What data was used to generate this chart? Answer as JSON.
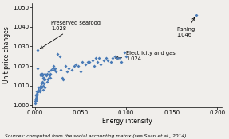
{
  "xlabel": "Energy intensity",
  "ylabel": "Unit price changes",
  "source_text": "Sources: computed from the social accounting matrix (see Saari et al., 2014)",
  "xlim": [
    -0.003,
    0.205
  ],
  "ylim": [
    0.999,
    1.052
  ],
  "xticks": [
    0.0,
    0.05,
    0.1,
    0.15,
    0.2
  ],
  "yticks": [
    1.0,
    1.01,
    1.02,
    1.03,
    1.04,
    1.05
  ],
  "scatter_color": "#4a7bb7",
  "marker_size": 4,
  "bg_color": "#f0eeeb",
  "data_points": [
    [
      0.0003,
      1.001
    ],
    [
      0.0005,
      1.002
    ],
    [
      0.0007,
      1.003
    ],
    [
      0.0008,
      1.002
    ],
    [
      0.001,
      1.003
    ],
    [
      0.001,
      1.004
    ],
    [
      0.0012,
      1.003
    ],
    [
      0.0013,
      1.005
    ],
    [
      0.0015,
      1.004
    ],
    [
      0.0015,
      1.006
    ],
    [
      0.002,
      1.005
    ],
    [
      0.002,
      1.006
    ],
    [
      0.002,
      1.007
    ],
    [
      0.003,
      1.028
    ],
    [
      0.003,
      1.019
    ],
    [
      0.004,
      1.007
    ],
    [
      0.004,
      1.008
    ],
    [
      0.004,
      1.009
    ],
    [
      0.005,
      1.007
    ],
    [
      0.005,
      1.008
    ],
    [
      0.005,
      1.009
    ],
    [
      0.006,
      1.01
    ],
    [
      0.006,
      1.015
    ],
    [
      0.006,
      1.016
    ],
    [
      0.007,
      1.009
    ],
    [
      0.007,
      1.011
    ],
    [
      0.007,
      1.016
    ],
    [
      0.008,
      1.012
    ],
    [
      0.008,
      1.015
    ],
    [
      0.008,
      1.016
    ],
    [
      0.009,
      1.008
    ],
    [
      0.009,
      1.01
    ],
    [
      0.009,
      1.014
    ],
    [
      0.01,
      1.011
    ],
    [
      0.01,
      1.013
    ],
    [
      0.01,
      1.014
    ],
    [
      0.011,
      1.009
    ],
    [
      0.011,
      1.013
    ],
    [
      0.011,
      1.016
    ],
    [
      0.012,
      1.015
    ],
    [
      0.013,
      1.012
    ],
    [
      0.013,
      1.016
    ],
    [
      0.014,
      1.013
    ],
    [
      0.015,
      1.014
    ],
    [
      0.015,
      1.017
    ],
    [
      0.016,
      1.015
    ],
    [
      0.017,
      1.016
    ],
    [
      0.017,
      1.014
    ],
    [
      0.018,
      1.018
    ],
    [
      0.019,
      1.019
    ],
    [
      0.02,
      1.02
    ],
    [
      0.021,
      1.018
    ],
    [
      0.022,
      1.019
    ],
    [
      0.023,
      1.017
    ],
    [
      0.025,
      1.026
    ],
    [
      0.027,
      1.025
    ],
    [
      0.028,
      1.018
    ],
    [
      0.03,
      1.014
    ],
    [
      0.031,
      1.013
    ],
    [
      0.033,
      1.02
    ],
    [
      0.035,
      1.017
    ],
    [
      0.037,
      1.019
    ],
    [
      0.04,
      1.018
    ],
    [
      0.043,
      1.02
    ],
    [
      0.045,
      1.021
    ],
    [
      0.047,
      1.02
    ],
    [
      0.05,
      1.017
    ],
    [
      0.052,
      1.022
    ],
    [
      0.055,
      1.021
    ],
    [
      0.058,
      1.022
    ],
    [
      0.06,
      1.022
    ],
    [
      0.063,
      1.023
    ],
    [
      0.065,
      1.02
    ],
    [
      0.067,
      1.024
    ],
    [
      0.068,
      1.022
    ],
    [
      0.07,
      1.024
    ],
    [
      0.072,
      1.021
    ],
    [
      0.075,
      1.023
    ],
    [
      0.078,
      1.024
    ],
    [
      0.08,
      1.023
    ],
    [
      0.083,
      1.022
    ],
    [
      0.085,
      1.024
    ],
    [
      0.088,
      1.025
    ],
    [
      0.09,
      1.024
    ],
    [
      0.093,
      1.024
    ],
    [
      0.095,
      1.022
    ],
    [
      0.098,
      1.027
    ],
    [
      0.1,
      1.025
    ],
    [
      0.177,
      1.046
    ]
  ]
}
